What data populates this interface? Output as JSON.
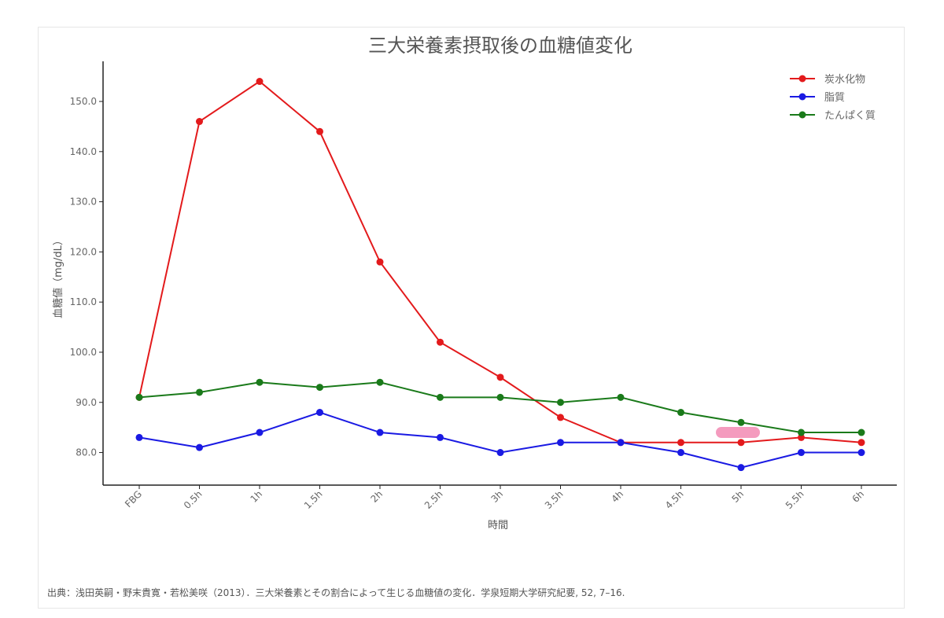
{
  "chart_data": {
    "type": "line",
    "title": "三大栄養素摂取後の血糖値変化",
    "xlabel": "時間",
    "ylabel": "血糖値（mg/dL）",
    "categories": [
      "FBG",
      "0.5h",
      "1h",
      "1.5h",
      "2h",
      "2.5h",
      "3h",
      "3.5h",
      "4h",
      "4.5h",
      "5h",
      "5.5h",
      "6h"
    ],
    "ylim": [
      73.5,
      158
    ],
    "yticks": [
      80,
      90,
      100,
      110,
      120,
      130,
      140,
      150
    ],
    "ytick_labels": [
      "80.0",
      "90.0",
      "100.0",
      "110.0",
      "120.0",
      "130.0",
      "140.0",
      "150.0"
    ],
    "grid": false,
    "legend_position": "top-right",
    "series": [
      {
        "name": "炭水化物",
        "color": "#e31a1c",
        "values": [
          91,
          146,
          154,
          144,
          118,
          102,
          95,
          87,
          82,
          82,
          82,
          83,
          82
        ]
      },
      {
        "name": "脂質",
        "color": "#1a1ae3",
        "values": [
          83,
          81,
          84,
          88,
          84,
          83,
          80,
          82,
          82,
          80,
          77,
          80,
          80
        ]
      },
      {
        "name": "たんぱく質",
        "color": "#1a7a1a",
        "values": [
          91,
          92,
          94,
          93,
          94,
          91,
          91,
          90,
          91,
          88,
          86,
          84,
          84
        ]
      }
    ]
  },
  "source_note": "出典：浅田英嗣・野末貴寛・若松美咲（2013）．三大栄養素とその割合によって生じる血糖値の変化．学泉短期大学研究紀要, 52, 7–16."
}
